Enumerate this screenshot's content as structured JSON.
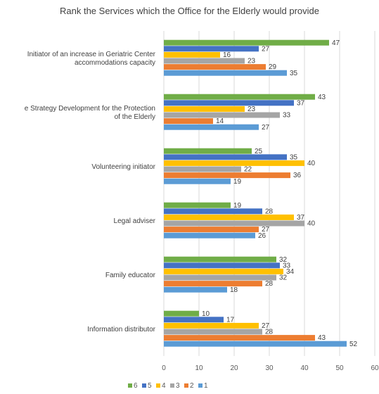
{
  "chart_data": {
    "type": "bar",
    "orientation": "horizontal",
    "title": "Rank the Services which the Office for the Elderly would provide",
    "categories": [
      [
        "Initiator of an increase in Geriatric Center",
        "accommodations capacity"
      ],
      [
        "e Strategy Development for the Protection",
        "of the Elderly"
      ],
      [
        "Volunteering initiator"
      ],
      [
        "Legal adviser"
      ],
      [
        "Family educator"
      ],
      [
        "Information distributor"
      ]
    ],
    "series": [
      {
        "name": "6",
        "color": "#70AD47",
        "values": [
          47,
          43,
          25,
          19,
          32,
          10
        ]
      },
      {
        "name": "5",
        "color": "#4472C4",
        "values": [
          27,
          37,
          35,
          28,
          33,
          17
        ]
      },
      {
        "name": "4",
        "color": "#FFC000",
        "values": [
          16,
          23,
          40,
          37,
          34,
          27
        ]
      },
      {
        "name": "3",
        "color": "#A5A5A5",
        "values": [
          23,
          33,
          22,
          40,
          32,
          28
        ]
      },
      {
        "name": "2",
        "color": "#ED7D31",
        "values": [
          29,
          14,
          36,
          27,
          28,
          43
        ]
      },
      {
        "name": "1",
        "color": "#5B9BD5",
        "values": [
          35,
          27,
          19,
          26,
          18,
          52
        ]
      }
    ],
    "xlim": [
      0,
      60
    ],
    "xticks": [
      0,
      10,
      20,
      30,
      40,
      50,
      60
    ],
    "grid": true,
    "legend_position": "bottom-left"
  }
}
